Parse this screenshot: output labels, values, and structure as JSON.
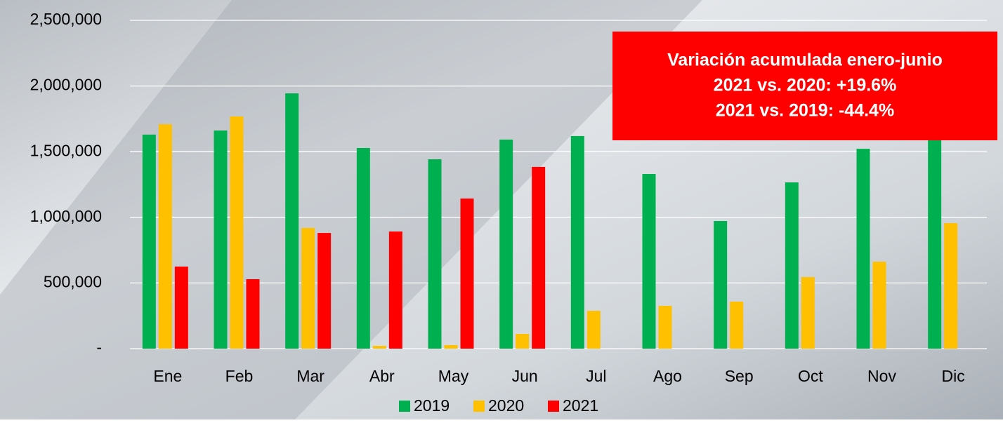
{
  "chart_data": {
    "type": "bar",
    "categories": [
      "Ene",
      "Feb",
      "Mar",
      "Abr",
      "May",
      "Jun",
      "Jul",
      "Ago",
      "Sep",
      "Oct",
      "Nov",
      "Dic"
    ],
    "series": [
      {
        "name": "2019",
        "color": "#00b050",
        "values": [
          1630000,
          1661000,
          1944000,
          1528000,
          1442000,
          1592000,
          1619000,
          1330000,
          972000,
          1266000,
          1522000,
          1640000
        ]
      },
      {
        "name": "2020",
        "color": "#ffc000",
        "values": [
          1709000,
          1768000,
          919000,
          21000,
          27000,
          112000,
          288000,
          326000,
          358000,
          545000,
          662000,
          956000
        ]
      },
      {
        "name": "2021",
        "color": "#ff0000",
        "values": [
          625000,
          529000,
          881000,
          892000,
          1143000,
          1384000,
          null,
          null,
          null,
          null,
          null,
          null
        ]
      }
    ],
    "ylim": [
      0,
      2500000
    ],
    "yticks": [
      {
        "value": 0,
        "label": "-"
      },
      {
        "value": 500000,
        "label": "500,000"
      },
      {
        "value": 1000000,
        "label": "1,000,000"
      },
      {
        "value": 1500000,
        "label": "1,500,000"
      },
      {
        "value": 2000000,
        "label": "2,000,000"
      },
      {
        "value": 2500000,
        "label": "2,500,000"
      }
    ],
    "grid": true,
    "legend": "bottom",
    "annotation": [
      "Variación acumulada enero-junio",
      "2021 vs. 2020: +19.6%",
      "2021 vs. 2019: -44.4%"
    ]
  }
}
